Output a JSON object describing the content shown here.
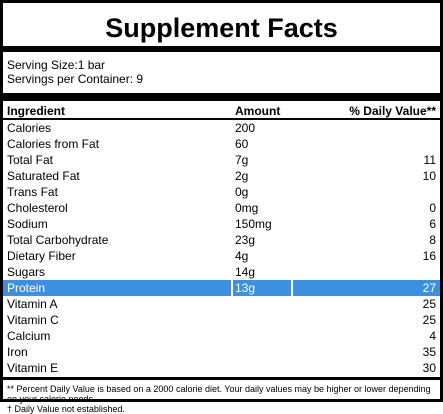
{
  "title": "Supplement Facts",
  "serving": {
    "size": "Serving Size:1 bar",
    "per_container": "Servings per Container: 9"
  },
  "headers": {
    "ingredient": "Ingredient",
    "amount": "Amount",
    "daily_value": "% Daily Value**"
  },
  "rows": [
    {
      "name": "Calories",
      "amount": "200",
      "dv": ""
    },
    {
      "name": "Calories from Fat",
      "amount": "60",
      "dv": ""
    },
    {
      "name": "Total Fat",
      "amount": "7g",
      "dv": "11"
    },
    {
      "name": "Saturated Fat",
      "amount": "2g",
      "dv": "10"
    },
    {
      "name": "Trans Fat",
      "amount": "0g",
      "dv": ""
    },
    {
      "name": "Cholesterol",
      "amount": "0mg",
      "dv": "0"
    },
    {
      "name": "Sodium",
      "amount": "150mg",
      "dv": "6"
    },
    {
      "name": "Total Carbohydrate",
      "amount": "23g",
      "dv": "8"
    },
    {
      "name": "Dietary Fiber",
      "amount": "4g",
      "dv": "16"
    },
    {
      "name": "Sugars",
      "amount": "14g",
      "dv": ""
    },
    {
      "name": "Protein",
      "amount": "13g",
      "dv": "27"
    },
    {
      "name": "Vitamin A",
      "amount": "",
      "dv": "25"
    },
    {
      "name": "Vitamin C",
      "amount": "",
      "dv": "25"
    },
    {
      "name": "Calcium",
      "amount": "",
      "dv": "4"
    },
    {
      "name": "Iron",
      "amount": "",
      "dv": "35"
    },
    {
      "name": "Vitamin E",
      "amount": "",
      "dv": "30"
    }
  ],
  "highlight_color": "#3f8fe0",
  "footnotes": {
    "dv_note": "** Percent Daily Value is based on a 2000 calorie diet. Your daily values may be higher or lower depending on your calorie needs.",
    "dagger_note": "† Daily Value not established."
  }
}
